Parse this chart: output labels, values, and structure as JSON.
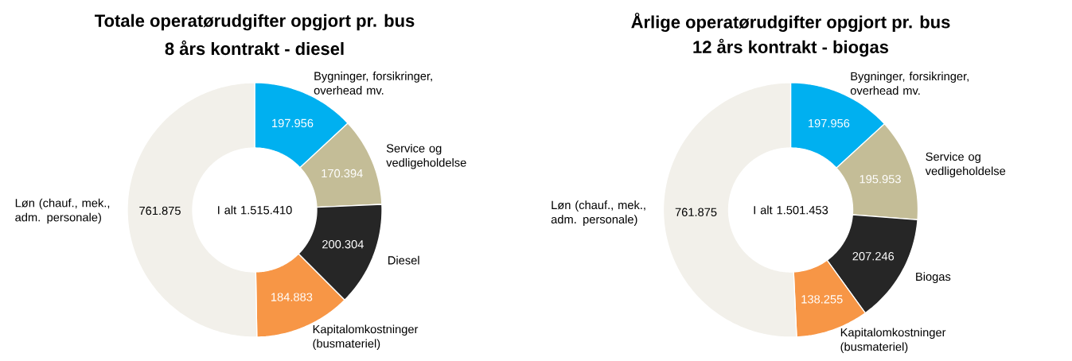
{
  "chart_data": [
    {
      "type": "donut",
      "title": "Totale operatørudgifter opgjort pr. bus",
      "subtitle": "8 års kontrakt - diesel",
      "categories": [
        "Bygninger, forsikringer, overhead mv.",
        "Service og vedligeholdelse",
        "Diesel",
        "Kapitalomkostninger (busmateriel)",
        "Løn (chauf., mek., adm. personale)"
      ],
      "values": [
        197956,
        170394,
        200304,
        184883,
        761875
      ],
      "value_labels": [
        "197.956",
        "170.394",
        "200.304",
        "184.883",
        "761.875"
      ],
      "colors": [
        "#00b0f0",
        "#c4bd97",
        "#262626",
        "#f79646",
        "#f2f0ea"
      ],
      "annotations": [
        "I alt 1.515.410"
      ]
    },
    {
      "type": "donut",
      "title": "Årlige operatørudgifter opgjort pr. bus",
      "subtitle": "12 års kontrakt - biogas",
      "categories": [
        "Bygninger, forsikringer, overhead mv.",
        "Service og vedligeholdelse",
        "Biogas",
        "Kapitalomkostninger (busmateriel)",
        "Løn (chauf., mek., adm. personale)"
      ],
      "values": [
        197956,
        195953,
        207246,
        138255,
        761875
      ],
      "value_labels": [
        "197.956",
        "195.953",
        "207.246",
        "138.255",
        "761.875"
      ],
      "colors": [
        "#00b0f0",
        "#c4bd97",
        "#262626",
        "#f79646",
        "#f2f0ea"
      ],
      "annotations": [
        "I alt 1.501.453"
      ]
    }
  ]
}
